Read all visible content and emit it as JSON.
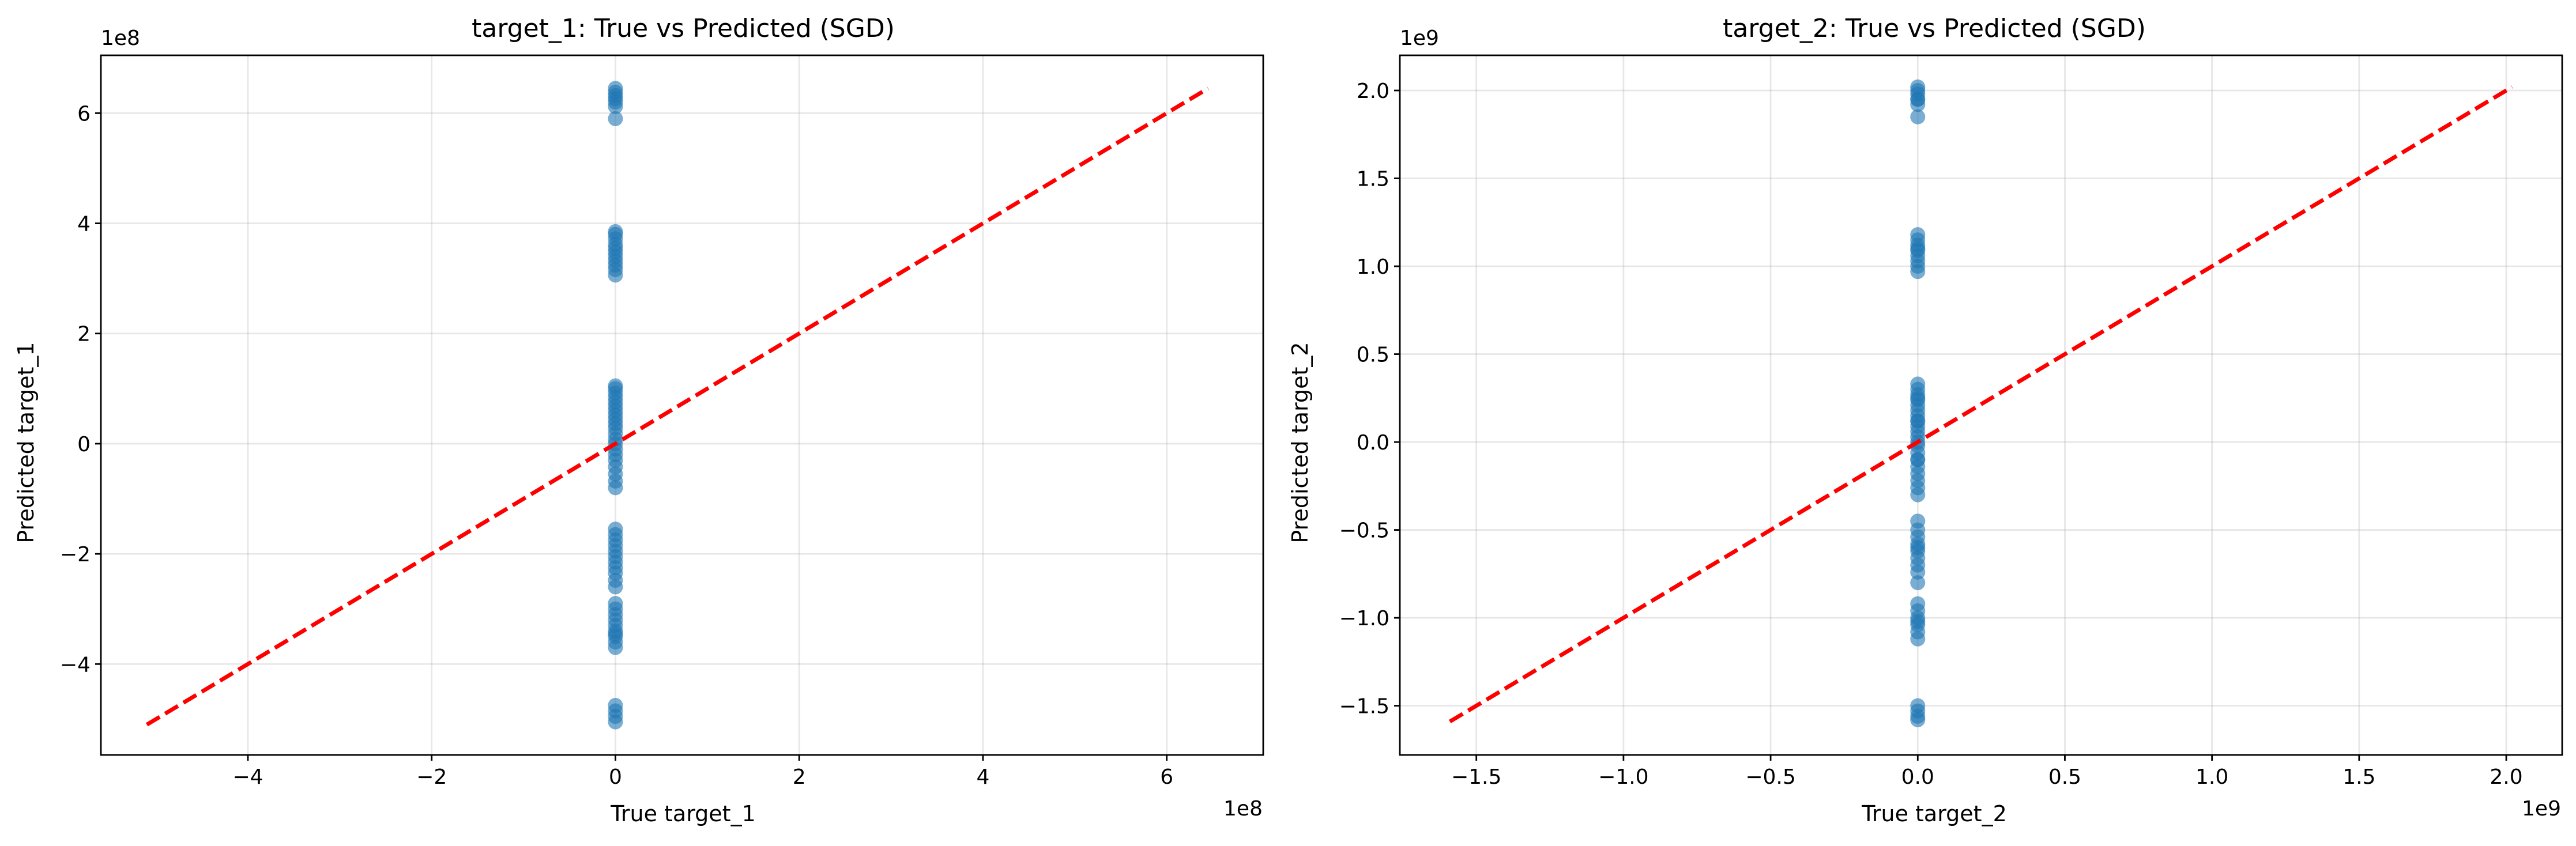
{
  "chart_data": [
    {
      "type": "scatter",
      "title": "target_1: True vs Predicted (SGD)",
      "xlabel": "True target_1",
      "ylabel": "Predicted target_1",
      "x_multiplier": "1e8",
      "y_multiplier": "1e8",
      "xlim": [
        -5.6,
        7.05
      ],
      "ylim": [
        -5.65,
        7.05
      ],
      "xticks": [
        -4,
        -2,
        0,
        2,
        4,
        6
      ],
      "yticks": [
        -4,
        -2,
        0,
        2,
        4,
        6
      ],
      "xtick_labels": [
        "−4",
        "−2",
        "0",
        "2",
        "4",
        "6"
      ],
      "ytick_labels": [
        "−4",
        "−2",
        "0",
        "2",
        "4",
        "6"
      ],
      "grid": true,
      "point_color": "#1f77b4",
      "line_color": "#ff0000",
      "reference_line": {
        "x": [
          -5.1,
          6.45
        ],
        "y": [
          -5.1,
          6.45
        ]
      },
      "series": [
        {
          "x": [
            0,
            0,
            0,
            0,
            0,
            0,
            0,
            0,
            0,
            0,
            0,
            0,
            0,
            0,
            0,
            0,
            0,
            0,
            0,
            0,
            0,
            0,
            0,
            0,
            0,
            0,
            0,
            0,
            0,
            0,
            0,
            0,
            0,
            0,
            0,
            0,
            0,
            0,
            0,
            0,
            0,
            0,
            0,
            0,
            0,
            0,
            0,
            0,
            0,
            0,
            0,
            0,
            0,
            0,
            0,
            0,
            0,
            0,
            0,
            0,
            0,
            0,
            0,
            0
          ],
          "y": [
            6.45,
            6.38,
            6.32,
            6.26,
            6.2,
            6.12,
            5.9,
            3.8,
            3.72,
            3.62,
            3.55,
            3.48,
            3.4,
            3.32,
            3.24,
            3.16,
            3.06,
            1.0,
            0.92,
            0.84,
            0.76,
            0.68,
            0.6,
            0.52,
            0.44,
            0.36,
            0.28,
            0.18,
            0.08,
            -0.1,
            -0.2,
            -0.3,
            -0.42,
            -0.55,
            -0.68,
            -0.8,
            -1.55,
            -1.65,
            -1.75,
            -1.85,
            -1.95,
            -2.05,
            -2.15,
            -2.25,
            -2.35,
            -2.48,
            -2.9,
            -3.0,
            -3.1,
            -3.2,
            -3.3,
            -3.4,
            -3.5,
            -3.6,
            -3.7,
            -4.75,
            -4.85,
            -4.95,
            -5.05,
            -3.45,
            -2.6,
            0.0,
            1.05,
            3.85
          ]
        }
      ]
    },
    {
      "type": "scatter",
      "title": "target_2: True vs Predicted (SGD)",
      "xlabel": "True target_2",
      "ylabel": "Predicted target_2",
      "x_multiplier": "1e9",
      "y_multiplier": "1e9",
      "xlim": [
        -1.76,
        2.19
      ],
      "ylim": [
        -1.78,
        2.2
      ],
      "xticks": [
        -1.5,
        -1.0,
        -0.5,
        0.0,
        0.5,
        1.0,
        1.5,
        2.0
      ],
      "yticks": [
        -1.5,
        -1.0,
        -0.5,
        0.0,
        0.5,
        1.0,
        1.5,
        2.0
      ],
      "xtick_labels": [
        "−1.5",
        "−1.0",
        "−0.5",
        "0.0",
        "0.5",
        "1.0",
        "1.5",
        "2.0"
      ],
      "ytick_labels": [
        "−1.5",
        "−1.0",
        "−0.5",
        "0.0",
        "0.5",
        "1.0",
        "1.5",
        "2.0"
      ],
      "grid": true,
      "point_color": "#1f77b4",
      "line_color": "#ff0000",
      "reference_line": {
        "x": [
          -1.59,
          2.02
        ],
        "y": [
          -1.59,
          2.02
        ]
      },
      "series": [
        {
          "x": [
            0,
            0,
            0,
            0,
            0,
            0,
            0,
            0,
            0,
            0,
            0,
            0,
            0,
            0,
            0,
            0,
            0,
            0,
            0,
            0,
            0,
            0,
            0,
            0,
            0,
            0,
            0,
            0,
            0,
            0,
            0,
            0,
            0,
            0,
            0,
            0,
            0,
            0,
            0,
            0,
            0,
            0,
            0,
            0,
            0,
            0,
            0,
            0,
            0,
            0,
            0,
            0,
            0,
            0,
            0,
            0,
            0,
            0,
            0,
            0
          ],
          "y": [
            2.02,
            2.0,
            1.98,
            1.95,
            1.92,
            1.85,
            1.18,
            1.15,
            1.12,
            1.09,
            1.06,
            1.03,
            1.0,
            0.97,
            0.33,
            0.3,
            0.27,
            0.24,
            0.21,
            0.18,
            0.15,
            0.12,
            0.09,
            0.06,
            0.03,
            -0.02,
            -0.06,
            -0.1,
            -0.14,
            -0.18,
            -0.22,
            -0.26,
            -0.5,
            -0.54,
            -0.58,
            -0.62,
            -0.66,
            -0.7,
            -0.74,
            -0.92,
            -0.96,
            -1.0,
            -1.04,
            -1.08,
            -1.12,
            -1.5,
            -1.53,
            -1.56,
            -1.58,
            -0.1,
            0.25,
            1.1,
            -0.6,
            -1.02,
            0.0,
            -0.3,
            0.12,
            1.95,
            -0.8,
            -0.45
          ]
        }
      ]
    }
  ]
}
